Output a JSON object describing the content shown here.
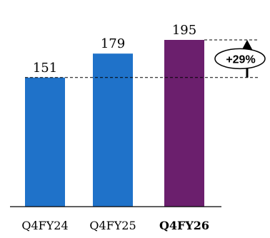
{
  "chart_data": {
    "type": "bar",
    "categories": [
      "Q4FY24",
      "Q4FY25",
      "Q4FY26"
    ],
    "values": [
      151,
      179,
      195
    ],
    "value_labels": [
      "151",
      "179",
      "195"
    ],
    "colors": [
      "#1f72c9",
      "#1f72c9",
      "#6b1f6d"
    ],
    "highlight_category": "Q4FY26",
    "ylim": [
      0,
      195
    ],
    "grid": false,
    "growth": {
      "label": "+29%",
      "from_value": 151,
      "to_value": 195
    }
  }
}
